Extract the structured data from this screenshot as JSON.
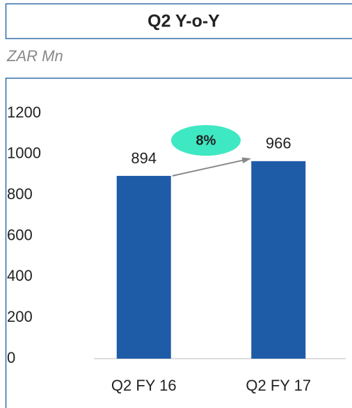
{
  "chart_data": {
    "type": "bar",
    "title": "Q2 Y-o-Y",
    "subtitle": "ZAR Mn",
    "categories": [
      "Q2 FY 16",
      "Q2 FY 17"
    ],
    "values": [
      894,
      966
    ],
    "color": "#1f5ca8",
    "annotation": "8%",
    "annotation_color": "#3ee8c2",
    "ylim": [
      0,
      1200
    ],
    "yticks": [
      0,
      200,
      400,
      600,
      800,
      1000,
      1200
    ],
    "grid": false
  }
}
